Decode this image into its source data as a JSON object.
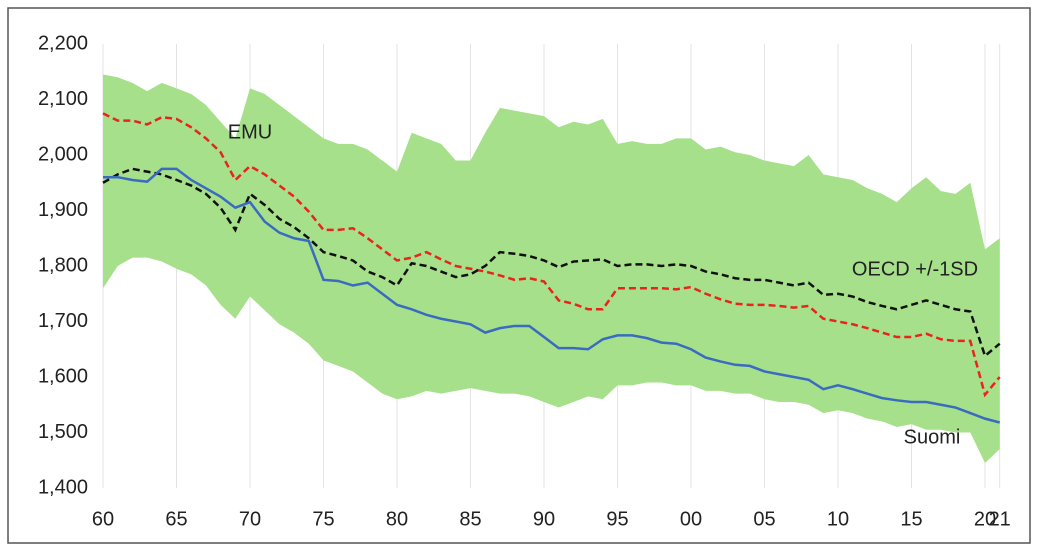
{
  "chart_data": {
    "type": "line",
    "categories": [
      "60",
      null,
      null,
      null,
      null,
      "65",
      null,
      null,
      null,
      null,
      "70",
      null,
      null,
      null,
      null,
      "75",
      null,
      null,
      null,
      null,
      "80",
      null,
      null,
      null,
      null,
      "85",
      null,
      null,
      null,
      null,
      "90",
      null,
      null,
      null,
      null,
      "95",
      null,
      null,
      null,
      null,
      "00",
      null,
      null,
      null,
      null,
      "05",
      null,
      null,
      null,
      null,
      "10",
      null,
      null,
      null,
      null,
      "15",
      null,
      null,
      null,
      null,
      "20",
      "21"
    ],
    "ylim": [
      1400,
      2200
    ],
    "yticks": [
      {
        "value": 1400,
        "label": "1,400"
      },
      {
        "value": 1500,
        "label": "1,500"
      },
      {
        "value": 1600,
        "label": "1,600"
      },
      {
        "value": 1700,
        "label": "1,700"
      },
      {
        "value": 1800,
        "label": "1,800"
      },
      {
        "value": 1900,
        "label": "1,900"
      },
      {
        "value": 2000,
        "label": "2,000"
      },
      {
        "value": 2100,
        "label": "2,100"
      },
      {
        "value": 2200,
        "label": "2,200"
      }
    ],
    "band": {
      "color": "#a6e08a",
      "upper": [
        2145,
        2140,
        2130,
        2115,
        2130,
        2120,
        2110,
        2090,
        2060,
        2030,
        2120,
        2110,
        2090,
        2070,
        2050,
        2030,
        2020,
        2020,
        2010,
        1990,
        1970,
        2040,
        2030,
        2020,
        1990,
        1990,
        2040,
        2085,
        2080,
        2075,
        2070,
        2050,
        2060,
        2055,
        2065,
        2020,
        2025,
        2020,
        2020,
        2030,
        2030,
        2010,
        2015,
        2005,
        2000,
        1990,
        1985,
        1980,
        2000,
        1965,
        1960,
        1955,
        1940,
        1930,
        1915,
        1940,
        1960,
        1935,
        1930,
        1950,
        1830,
        1850
      ],
      "lower": [
        1760,
        1800,
        1815,
        1815,
        1808,
        1795,
        1785,
        1765,
        1730,
        1705,
        1745,
        1720,
        1695,
        1680,
        1660,
        1630,
        1620,
        1610,
        1590,
        1570,
        1560,
        1565,
        1575,
        1570,
        1575,
        1580,
        1575,
        1570,
        1570,
        1565,
        1555,
        1545,
        1555,
        1565,
        1560,
        1585,
        1585,
        1590,
        1590,
        1585,
        1585,
        1575,
        1575,
        1570,
        1570,
        1560,
        1555,
        1555,
        1550,
        1535,
        1540,
        1535,
        1525,
        1520,
        1510,
        1515,
        1505,
        1505,
        1500,
        1500,
        1445,
        1470
      ]
    },
    "series": [
      {
        "name": "EMU",
        "color": "#e8241c",
        "dashed": true,
        "values": [
          2075,
          2062,
          2062,
          2055,
          2068,
          2065,
          2050,
          2030,
          2005,
          1955,
          1980,
          1965,
          1945,
          1925,
          1898,
          1865,
          1865,
          1868,
          1850,
          1830,
          1810,
          1815,
          1825,
          1812,
          1800,
          1795,
          1790,
          1783,
          1775,
          1778,
          1772,
          1738,
          1732,
          1722,
          1722,
          1760,
          1760,
          1760,
          1760,
          1758,
          1762,
          1750,
          1740,
          1732,
          1730,
          1730,
          1728,
          1725,
          1728,
          1705,
          1700,
          1695,
          1688,
          1680,
          1672,
          1672,
          1678,
          1668,
          1665,
          1665,
          1568,
          1600
        ]
      },
      {
        "name": "OECD +/-1SD",
        "color": "#111111",
        "dashed": true,
        "values": [
          1950,
          1965,
          1975,
          1970,
          1965,
          1955,
          1945,
          1930,
          1905,
          1865,
          1930,
          1910,
          1885,
          1870,
          1850,
          1825,
          1818,
          1810,
          1790,
          1780,
          1765,
          1805,
          1800,
          1790,
          1780,
          1785,
          1800,
          1825,
          1822,
          1818,
          1810,
          1798,
          1808,
          1810,
          1812,
          1800,
          1803,
          1803,
          1800,
          1803,
          1800,
          1790,
          1785,
          1778,
          1775,
          1775,
          1770,
          1765,
          1770,
          1748,
          1750,
          1745,
          1735,
          1728,
          1722,
          1730,
          1738,
          1730,
          1722,
          1718,
          1638,
          1660
        ]
      },
      {
        "name": "Suomi",
        "color": "#3a6bc0",
        "dashed": false,
        "values": [
          1960,
          1960,
          1955,
          1952,
          1975,
          1975,
          1955,
          1940,
          1925,
          1905,
          1915,
          1880,
          1860,
          1850,
          1845,
          1775,
          1773,
          1765,
          1770,
          1750,
          1730,
          1722,
          1712,
          1705,
          1700,
          1695,
          1680,
          1688,
          1692,
          1692,
          1672,
          1652,
          1652,
          1650,
          1668,
          1675,
          1675,
          1670,
          1662,
          1660,
          1650,
          1635,
          1628,
          1622,
          1620,
          1610,
          1605,
          1600,
          1595,
          1578,
          1585,
          1578,
          1570,
          1562,
          1558,
          1555,
          1555,
          1550,
          1545,
          1535,
          1525,
          1518
        ]
      }
    ],
    "grid": true
  }
}
